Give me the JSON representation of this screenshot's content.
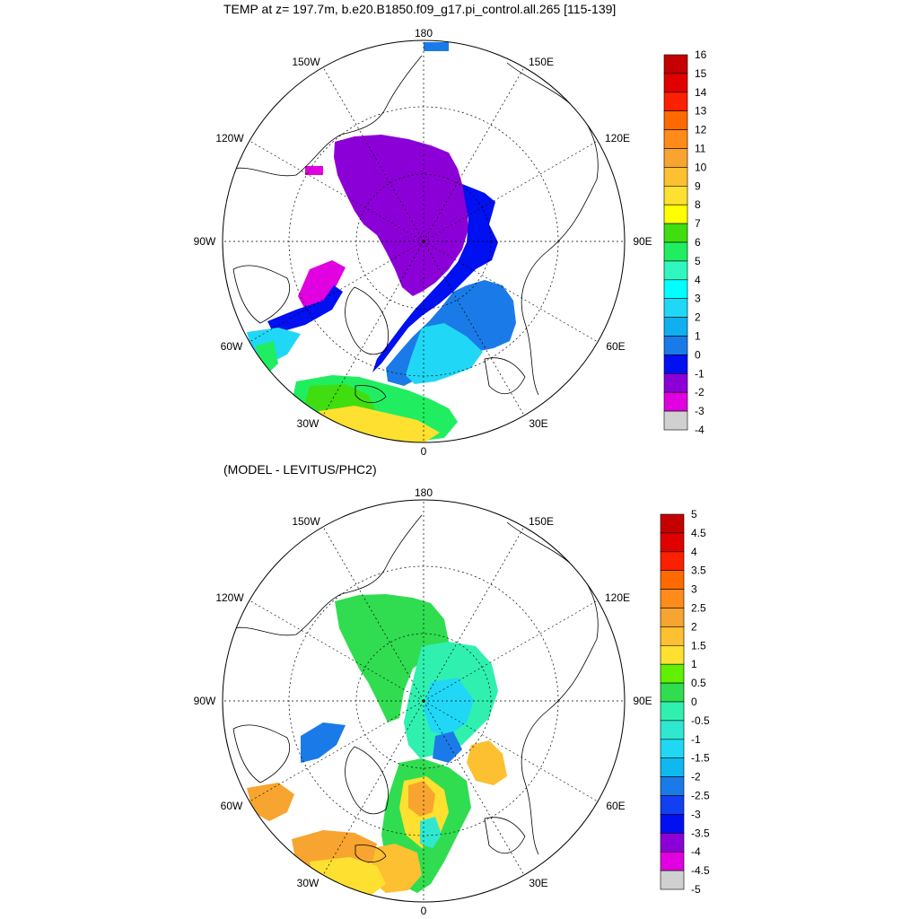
{
  "panels": [
    {
      "title": "TEMP at z= 197.7m, b.e20.B1850.f09_g17.pi_control.all.265 [115-139]",
      "lon_labels": [
        "180",
        "150E",
        "120E",
        "90E",
        "60E",
        "30E",
        "0",
        "30W",
        "60W",
        "90W",
        "120W",
        "150W"
      ],
      "colorbar": {
        "labels": [
          "16",
          "15",
          "14",
          "13",
          "12",
          "11",
          "10",
          "9",
          "8",
          "7",
          "6",
          "5",
          "4",
          "3",
          "2",
          "1",
          "0",
          "-1",
          "-2",
          "-3",
          "-4"
        ],
        "colors": [
          "#c40000",
          "#e00000",
          "#fa2000",
          "#ff6a00",
          "#ff8c1a",
          "#f7a530",
          "#fcc030",
          "#fde030",
          "#ffff00",
          "#40dd10",
          "#20ee60",
          "#30f7c0",
          "#00ffff",
          "#20d8f5",
          "#10b0f0",
          "#1a7be8",
          "#0010f0",
          "#8c00d8",
          "#e000e0",
          "#d0d0d0",
          "#707070"
        ]
      }
    },
    {
      "title": "(MODEL - LEVITUS/PHC2)",
      "lon_labels": [
        "180",
        "150E",
        "120E",
        "90E",
        "60E",
        "30E",
        "0",
        "30W",
        "60W",
        "90W",
        "120W",
        "150W"
      ],
      "colorbar": {
        "labels": [
          "5",
          "4.5",
          "4",
          "3.5",
          "3",
          "2.5",
          "2",
          "1.5",
          "1",
          "0.5",
          "0",
          "-0.5",
          "-1",
          "-1.5",
          "-2",
          "-2.5",
          "-3",
          "-3.5",
          "-4",
          "-4.5",
          "-5"
        ],
        "colors": [
          "#c40000",
          "#e00000",
          "#fa2000",
          "#ff6a00",
          "#ff8c1a",
          "#f7a530",
          "#fcc030",
          "#fde030",
          "#60f000",
          "#30dd50",
          "#30f0b0",
          "#30e8d0",
          "#20d8f5",
          "#10b8f0",
          "#1a7be8",
          "#1040f0",
          "#0010f0",
          "#8c00d8",
          "#e000e0",
          "#d0d0d0",
          "#707070"
        ]
      }
    }
  ]
}
